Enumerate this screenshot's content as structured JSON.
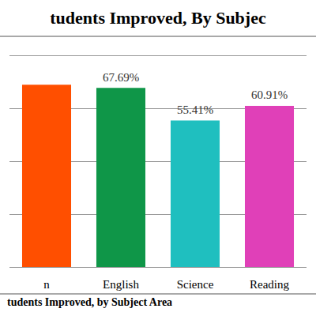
{
  "chart_data": {
    "type": "bar",
    "title": "tudents Improved, By Subjec",
    "caption": "tudents Improved, by Subject Area",
    "categories": [
      "n",
      "English",
      "Science",
      "Reading"
    ],
    "values": [
      68.9,
      67.69,
      55.41,
      60.91
    ],
    "value_labels": [
      null,
      "67.69%",
      "55.41%",
      "60.91%"
    ],
    "colors": [
      "#ff4f00",
      "#0f9648",
      "#1fbfbf",
      "#e040b8"
    ],
    "ylim": [
      0,
      80
    ],
    "yticks": [
      0,
      20,
      40,
      60,
      80
    ],
    "grid": true,
    "data_labels": true,
    "tick_labels": "x"
  }
}
